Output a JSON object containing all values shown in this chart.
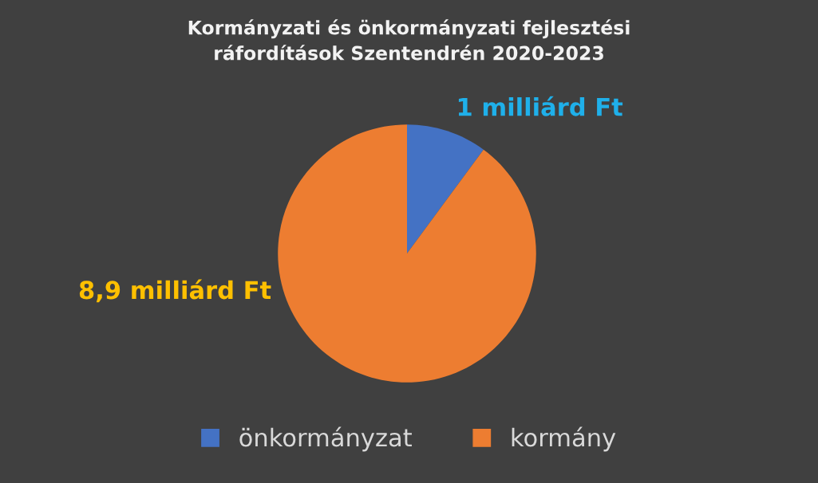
{
  "chart_data": {
    "type": "pie",
    "title": "Kormányzati és önkormányzati fejlesztési\nráfordítások Szentendrén 2020-2023",
    "categories": [
      "önkormányzat",
      "kormány"
    ],
    "values": [
      1,
      8.9
    ],
    "colors": [
      "#4472c4",
      "#ed7d31"
    ],
    "value_labels": [
      "1 milliárd Ft",
      "8,9 milliárd Ft"
    ],
    "legend": "bottom"
  }
}
